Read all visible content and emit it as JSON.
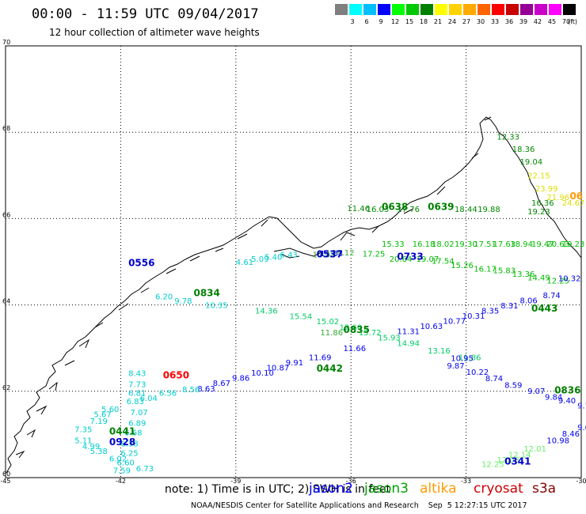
{
  "header": {
    "title": "00:00 - 11:59 UTC 09/04/2017",
    "subtitle": "12 hour collection of altimeter wave heights"
  },
  "colorbar": {
    "colors": [
      "#7f7f7f",
      "#00ffff",
      "#00bfff",
      "#0000ff",
      "#00ff00",
      "#00c800",
      "#008000",
      "#ffff00",
      "#ffd200",
      "#ffaa00",
      "#ff6400",
      "#ff0000",
      "#c80000",
      "#960096",
      "#c800c8",
      "#ff00ff",
      "#000000"
    ],
    "ticks": [
      "3",
      "6",
      "9",
      "12",
      "15",
      "18",
      "21",
      "24",
      "27",
      "30",
      "33",
      "36",
      "39",
      "42",
      "45",
      "70"
    ],
    "units": "(ft)"
  },
  "map": {
    "lat_labels": [
      "70",
      "68",
      "66",
      "64",
      "62",
      "60"
    ],
    "lon_labels": [
      "-45",
      "-42",
      "-39",
      "-36",
      "-33",
      "-30"
    ],
    "lat_range": [
      60,
      70
    ],
    "lon_range": [
      -45,
      -30
    ],
    "times": [
      {
        "text": "0556",
        "color": "#0000cc",
        "lon": -41.8,
        "lat": 64.9
      },
      {
        "text": "0834",
        "color": "#008000",
        "lon": -40.1,
        "lat": 64.2
      },
      {
        "text": "0650",
        "color": "#ff0000",
        "lon": -40.9,
        "lat": 62.3
      },
      {
        "text": "0441",
        "color": "#008000",
        "lon": -42.3,
        "lat": 61.0
      },
      {
        "text": "0928",
        "color": "#0000cc",
        "lon": -42.3,
        "lat": 60.75
      },
      {
        "text": "0537",
        "color": "#0000cc",
        "lon": -36.9,
        "lat": 65.1
      },
      {
        "text": "0638",
        "color": "#008000",
        "lon": -35.2,
        "lat": 66.2
      },
      {
        "text": "0639",
        "color": "#008000",
        "lon": -34.0,
        "lat": 66.2
      },
      {
        "text": "0733",
        "color": "#0000cc",
        "lon": -34.8,
        "lat": 65.05
      },
      {
        "text": "0835",
        "color": "#008000",
        "lon": -36.2,
        "lat": 63.35
      },
      {
        "text": "0442",
        "color": "#008000",
        "lon": -36.9,
        "lat": 62.45
      },
      {
        "text": "0443",
        "color": "#008000",
        "lon": -31.3,
        "lat": 63.85
      },
      {
        "text": "0836",
        "color": "#008000",
        "lon": -30.7,
        "lat": 61.95
      },
      {
        "text": "0341",
        "color": "#0000cc",
        "lon": -32.0,
        "lat": 60.3
      },
      {
        "text": "06",
        "color": "#ff9900",
        "lon": -30.3,
        "lat": 66.45
      }
    ],
    "tracks": [
      {
        "color": "#00cccc",
        "points": [
          [
            "4.61",
            -39.0,
            64.93
          ],
          [
            "5.09",
            -38.6,
            65.0
          ],
          [
            "5.40",
            -38.25,
            65.05
          ],
          [
            "6.43",
            -37.85,
            65.1
          ]
        ]
      },
      {
        "color": "#00cccc",
        "points": [
          [
            "6.20",
            -41.1,
            64.13
          ],
          [
            "9.78",
            -40.6,
            64.03
          ],
          [
            "10.35",
            -39.8,
            63.93
          ]
        ]
      },
      {
        "color": "#00cc66",
        "points": [
          [
            "14.36",
            -38.5,
            63.8
          ],
          [
            "15.54",
            -37.6,
            63.67
          ],
          [
            "15.02",
            -36.9,
            63.55
          ],
          [
            "12.60",
            -36.3,
            63.42
          ],
          [
            "15.72",
            -35.8,
            63.3
          ],
          [
            "15.93",
            -35.3,
            63.18
          ],
          [
            "14.94",
            -34.8,
            63.05
          ],
          [
            "13.16",
            -34.0,
            62.88
          ],
          [
            "11.86",
            -33.2,
            62.72
          ]
        ]
      },
      {
        "color": "#0000ee",
        "points": [
          [
            "11.31",
            -34.8,
            63.32
          ],
          [
            "10.63",
            -34.2,
            63.44
          ],
          [
            "10.77",
            -33.6,
            63.56
          ],
          [
            "10.31",
            -33.1,
            63.68
          ],
          [
            "8.35",
            -32.6,
            63.8
          ],
          [
            "8.31",
            -32.1,
            63.92
          ],
          [
            "8.06",
            -31.6,
            64.04
          ],
          [
            "8.74",
            -31.0,
            64.16
          ]
        ]
      },
      {
        "color": "#0000ee",
        "points": [
          [
            "11.66",
            -36.2,
            62.93
          ],
          [
            "11.69",
            -37.1,
            62.72
          ],
          [
            "9.91",
            -37.7,
            62.6
          ],
          [
            "10.87",
            -38.2,
            62.48
          ],
          [
            "10.10",
            -38.6,
            62.36
          ],
          [
            "9.86",
            -39.1,
            62.24
          ],
          [
            "8.67",
            -39.6,
            62.12
          ],
          [
            "8.63",
            -40.0,
            62.0
          ]
        ]
      },
      {
        "color": "#00cccc",
        "points": [
          [
            "8.43",
            -41.8,
            62.35
          ],
          [
            "7.73",
            -41.8,
            62.1
          ],
          [
            "6.81",
            -41.8,
            61.9
          ],
          [
            "6.04",
            -41.5,
            61.78
          ],
          [
            "6.56",
            -41.0,
            61.9
          ],
          [
            "8.56",
            -40.4,
            61.98
          ],
          [
            "6.83",
            -41.85,
            61.7
          ],
          [
            "7.07",
            -41.75,
            61.45
          ],
          [
            "6.89",
            -41.8,
            61.2
          ],
          [
            "6.68",
            -41.9,
            60.98
          ],
          [
            "6.38",
            -42.0,
            60.72
          ],
          [
            "6.25",
            -42.0,
            60.5
          ],
          [
            "6.02",
            -42.3,
            60.38
          ],
          [
            "6.60",
            -42.1,
            60.28
          ],
          [
            "6.73",
            -41.6,
            60.15
          ]
        ]
      },
      {
        "color": "#00cccc",
        "points": [
          [
            "5.60",
            -42.5,
            61.52
          ],
          [
            "5.67",
            -42.7,
            61.4
          ],
          [
            "7.19",
            -42.8,
            61.25
          ],
          [
            "7.35",
            -43.2,
            61.05
          ],
          [
            "5.11",
            -43.2,
            60.8
          ],
          [
            "4.99",
            -43.0,
            60.66
          ],
          [
            "5.38",
            -42.8,
            60.55
          ],
          [
            "7.59",
            -42.2,
            60.1
          ]
        ]
      },
      {
        "color": "#008800",
        "points": [
          [
            "11.46",
            -36.1,
            66.17
          ],
          [
            "16.03",
            -35.6,
            66.15
          ],
          [
            "17.76",
            -34.8,
            66.15
          ],
          [
            "18.44",
            -33.3,
            66.15
          ],
          [
            "19.88",
            -32.7,
            66.15
          ],
          [
            "19.23",
            -31.4,
            66.1
          ],
          [
            "12.33",
            -32.2,
            67.83
          ],
          [
            "18.36",
            -31.8,
            67.55
          ],
          [
            "19.04",
            -31.6,
            67.25
          ],
          [
            "16.36",
            -31.3,
            66.3
          ]
        ]
      },
      {
        "color": "#00bb00",
        "points": [
          [
            "15.33",
            -35.2,
            65.35
          ],
          [
            "16.18",
            -34.4,
            65.35
          ],
          [
            "18.02",
            -33.9,
            65.35
          ],
          [
            "19.30",
            -33.3,
            65.35
          ],
          [
            "17.51",
            -32.8,
            65.35
          ],
          [
            "17.63",
            -32.3,
            65.35
          ],
          [
            "18.94",
            -31.85,
            65.35
          ],
          [
            "19.47",
            -31.3,
            65.35
          ],
          [
            "20.63",
            -30.9,
            65.35
          ],
          [
            "19.23",
            -30.5,
            65.35
          ],
          [
            "17.25",
            -35.7,
            65.12
          ],
          [
            "20.64",
            -35.0,
            65.0
          ],
          [
            "19.07",
            -34.3,
            65.0
          ],
          [
            "17.54",
            -33.9,
            64.95
          ],
          [
            "15.26",
            -33.4,
            64.85
          ],
          [
            "16.17",
            -32.8,
            64.77
          ],
          [
            "15.83",
            -32.3,
            64.73
          ],
          [
            "13.36",
            -31.8,
            64.65
          ],
          [
            "14.49",
            -31.4,
            64.57
          ],
          [
            "12.25",
            -30.9,
            64.5
          ]
        ]
      },
      {
        "color": "#dddd00",
        "points": [
          [
            "22.15",
            -31.4,
            66.93
          ],
          [
            "23.99",
            -31.2,
            66.63
          ],
          [
            "21.96",
            -30.9,
            66.43
          ],
          [
            "24.67",
            -30.5,
            66.3
          ]
        ]
      },
      {
        "color": "#0000ee",
        "points": [
          [
            "10.32",
            -30.6,
            64.55
          ],
          [
            "11.33",
            -36.8,
            65.13
          ],
          [
            "9.87",
            -33.5,
            62.53
          ],
          [
            "10.22",
            -33.0,
            62.38
          ],
          [
            "8.74",
            -32.5,
            62.23
          ],
          [
            "8.59",
            -32.0,
            62.08
          ],
          [
            "9.07",
            -31.4,
            61.94
          ],
          [
            "9.84",
            -30.95,
            61.8
          ],
          [
            "9.40",
            -30.6,
            61.72
          ],
          [
            "9.78",
            -30.1,
            61.6
          ],
          [
            "10.95",
            -33.4,
            62.7
          ],
          [
            "10.98",
            -30.9,
            60.8
          ],
          [
            "8.46",
            -30.5,
            60.95
          ],
          [
            "9.04",
            -30.1,
            61.1
          ]
        ]
      },
      {
        "color": "#66ee66",
        "points": [
          [
            "12.25",
            -32.6,
            60.25
          ],
          [
            "12.08",
            -32.2,
            60.35
          ],
          [
            "12.14",
            -31.9,
            60.47
          ],
          [
            "12.01",
            -31.5,
            60.6
          ]
        ]
      },
      {
        "color": "#33aa33",
        "points": [
          [
            "11.86",
            -36.8,
            63.3
          ],
          [
            "17.02",
            -37.0,
            65.1
          ],
          [
            "16.12",
            -36.5,
            65.15
          ]
        ]
      }
    ]
  },
  "footer": {
    "note": "note: 1) Time is in UTC; 2) SWH is in feet",
    "legend": [
      {
        "name": "jason2",
        "color": "#0000ff"
      },
      {
        "name": "jason3",
        "color": "#00a000"
      },
      {
        "name": "altika",
        "color": "#ff9900"
      },
      {
        "name": "cryosat",
        "color": "#cc0000"
      },
      {
        "name": "s3a",
        "color": "#880000"
      }
    ],
    "credit": "NOAA/NESDIS Center for Satellite Applications and Research    Sep  5 12:27:15 UTC 2017"
  }
}
